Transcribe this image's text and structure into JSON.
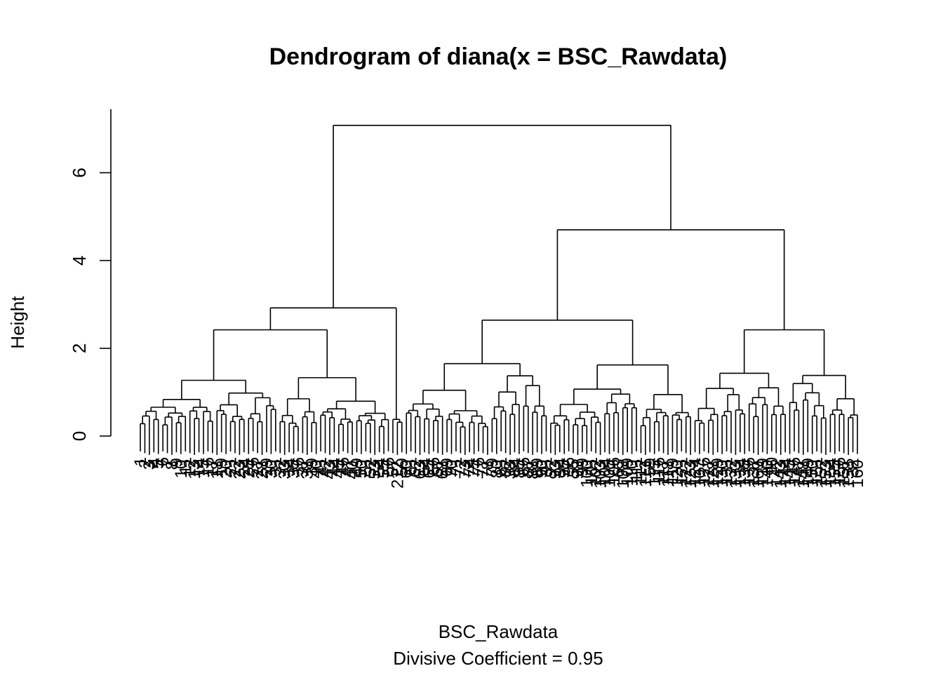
{
  "chart_data": {
    "type": "dendrogram",
    "title": "Dendrogram of  diana(x = BSC_Rawdata)",
    "xlabel": "BSC_Rawdata",
    "sub": "Divisive Coefficient =  0.95",
    "ylabel": "Height",
    "ylim": [
      0,
      7.2
    ],
    "yticks": [
      0,
      2,
      4,
      6
    ],
    "n_leaves": 160,
    "visible_leaf_labels": [
      "212",
      "38",
      "63",
      "107",
      "169",
      "55",
      "40",
      "59",
      "90",
      "32"
    ],
    "merges": [
      {
        "name": "root",
        "height": 7.08,
        "left": "A",
        "right": "B"
      },
      {
        "name": "A",
        "height": 2.92,
        "left": "A1",
        "right": "A2"
      },
      {
        "name": "A1",
        "height": 2.42,
        "left": "A1a",
        "right": "A1b"
      },
      {
        "name": "A1a",
        "height": 1.27
      },
      {
        "name": "A1b",
        "height": 1.33
      },
      {
        "name": "A2",
        "height": 0.38
      },
      {
        "name": "B",
        "height": 4.7,
        "left": "B1",
        "right": "B2"
      },
      {
        "name": "B1",
        "height": 2.64,
        "left": "B1a",
        "right": "B1b"
      },
      {
        "name": "B1a",
        "height": 1.65
      },
      {
        "name": "B1b",
        "height": 1.62
      },
      {
        "name": "B2",
        "height": 2.42,
        "left": "B2a",
        "right": "B2b"
      },
      {
        "name": "B2a",
        "height": 1.43
      },
      {
        "name": "B2b",
        "height": 1.38
      }
    ]
  }
}
